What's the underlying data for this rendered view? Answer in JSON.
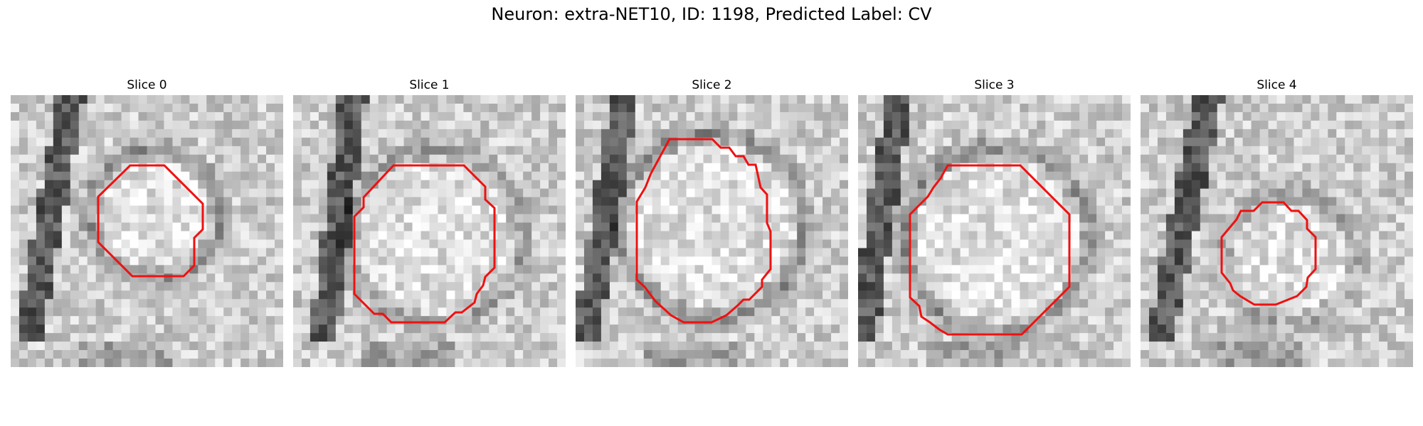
{
  "figure": {
    "title": "Neuron: extra-NET10, ID: 1198, Predicted Label: CV",
    "contour_color": "#ee1111"
  },
  "slices": [
    {
      "title": "Slice 0"
    },
    {
      "title": "Slice 1"
    },
    {
      "title": "Slice 2"
    },
    {
      "title": "Slice 3"
    },
    {
      "title": "Slice 4"
    }
  ]
}
